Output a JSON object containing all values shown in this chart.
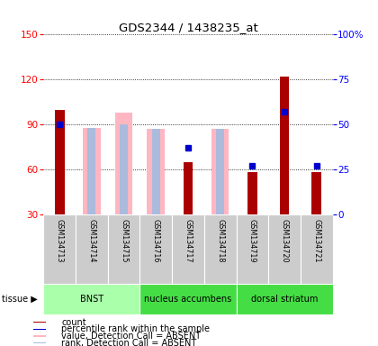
{
  "title": "GDS2344 / 1438235_at",
  "samples": [
    "GSM134713",
    "GSM134714",
    "GSM134715",
    "GSM134716",
    "GSM134717",
    "GSM134718",
    "GSM134719",
    "GSM134720",
    "GSM134721"
  ],
  "count_values": [
    100,
    null,
    null,
    null,
    65,
    null,
    58,
    122,
    58
  ],
  "absent_value": [
    null,
    88,
    98,
    87,
    null,
    87,
    null,
    null,
    null
  ],
  "absent_rank": [
    null,
    88,
    90,
    87,
    null,
    87,
    null,
    null,
    null
  ],
  "percentile_rank": [
    50,
    null,
    null,
    null,
    37,
    null,
    27,
    57,
    27
  ],
  "tissue_groups": [
    {
      "label": "BNST",
      "start": 0,
      "end": 3,
      "color": "#AAFFAA"
    },
    {
      "label": "nucleus accumbens",
      "start": 3,
      "end": 6,
      "color": "#44DD44"
    },
    {
      "label": "dorsal striatum",
      "start": 6,
      "end": 9,
      "color": "#44DD44"
    }
  ],
  "ylim_left": [
    30,
    150
  ],
  "ylim_right": [
    0,
    100
  ],
  "yticks_left": [
    30,
    60,
    90,
    120,
    150
  ],
  "yticks_right": [
    0,
    25,
    50,
    75,
    100
  ],
  "color_count": "#AA0000",
  "color_absent_value": "#FFB6C1",
  "color_absent_rank": "#AABBDD",
  "color_percentile": "#0000CC",
  "legend_items": [
    {
      "color": "#AA0000",
      "label": "count",
      "marker": "s"
    },
    {
      "color": "#0000CC",
      "label": "percentile rank within the sample",
      "marker": "s"
    },
    {
      "color": "#FFB6C1",
      "label": "value, Detection Call = ABSENT",
      "marker": "s"
    },
    {
      "color": "#AABBDD",
      "label": "rank, Detection Call = ABSENT",
      "marker": "s"
    }
  ]
}
